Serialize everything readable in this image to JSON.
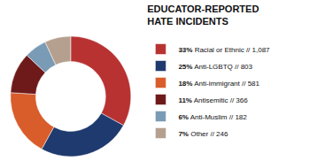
{
  "chart_data": {
    "type": "pie",
    "title": "EDUCATOR-REPORTED\nHATE INCIDENTS",
    "categories": [
      "Racial or Ethnic // 1,087",
      "Anti-LGBTQ // 803",
      "Anti-immigrant // 581",
      "Antisemitic // 366",
      "Anti-Muslim // 182",
      "Other // 246"
    ],
    "values": [
      33,
      25,
      18,
      11,
      6,
      7
    ],
    "value_labels": [
      "33%",
      "25%",
      "18%",
      "11%",
      "6%",
      "7%"
    ],
    "colors": [
      "#b83232",
      "#1e3a6e",
      "#d95c2b",
      "#6e1a1a",
      "#7a9bb5",
      "#b5a090"
    ],
    "legend": "right"
  }
}
